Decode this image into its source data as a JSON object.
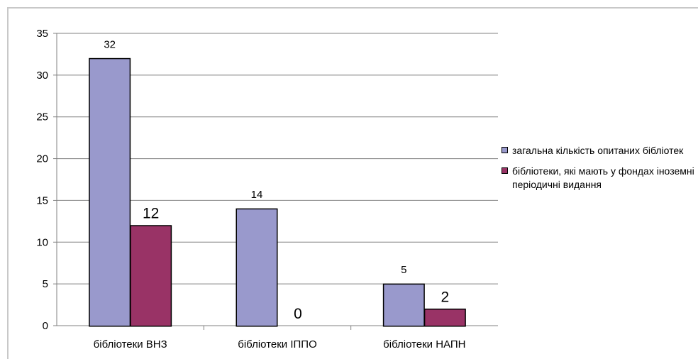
{
  "chart_data": {
    "type": "bar",
    "categories": [
      "бібліотеки ВНЗ",
      "бібліотеки ІППО",
      "бібліотеки НАПН"
    ],
    "series": [
      {
        "name": "загальна кількість опитаних бібліотек",
        "values": [
          32,
          14,
          5
        ],
        "color": "#9999cc"
      },
      {
        "name": "бібліотеки, які мають у фондах іноземні періодичні видання",
        "values": [
          12,
          0,
          2
        ],
        "color": "#993366"
      }
    ],
    "ylim": [
      0,
      35
    ],
    "yticks": [
      0,
      5,
      10,
      15,
      20,
      25,
      30,
      35
    ],
    "grid": true,
    "legend_position": "right",
    "title": "",
    "xlabel": "",
    "ylabel": ""
  }
}
